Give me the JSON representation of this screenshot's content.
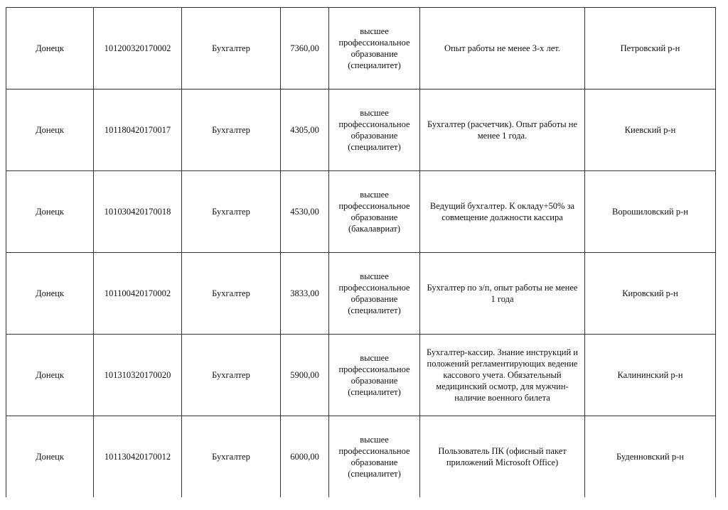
{
  "rows": [
    {
      "city": "Донецк",
      "code": "101200320170002",
      "position": "Бухгалтер",
      "salary": "7360,00",
      "education": "высшее профессиональное образование (специалитет)",
      "requirements": "Опыт работы не менее 3-х лет.",
      "district": "Петровский р-н"
    },
    {
      "city": "Донецк",
      "code": "101180420170017",
      "position": "Бухгалтер",
      "salary": "4305,00",
      "education": "высшее профессиональное образование (специалитет)",
      "requirements": "Бухгалтер (расчетчик). Опыт работы не менее 1 года.",
      "district": "Киевский р-н"
    },
    {
      "city": "Донецк",
      "code": "101030420170018",
      "position": "Бухгалтер",
      "salary": "4530,00",
      "education": "высшее профессиональное образование (бакалавриат)",
      "requirements": "Ведущий бухгалтер. К окладу+50% за совмещение должности кассира",
      "district": "Ворошиловский р-н"
    },
    {
      "city": "Донецк",
      "code": "101100420170002",
      "position": "Бухгалтер",
      "salary": "3833,00",
      "education": "высшее профессиональное образование (специалитет)",
      "requirements": "Бухгалтер по з/п, опыт работы не менее 1 года",
      "district": "Кировский р-н"
    },
    {
      "city": "Донецк",
      "code": "101310320170020",
      "position": "Бухгалтер",
      "salary": "5900,00",
      "education": "высшее профессиональное образование (специалитет)",
      "requirements": "Бухгалтер-кассир. Знание инструкций и положений регламентирующих ведение кассового учета. Обязательный медицинский осмотр, для мужчин-наличие военного билета",
      "district": "Калининский р-н"
    },
    {
      "city": "Донецк",
      "code": "101130420170012",
      "position": "Бухгалтер",
      "salary": "6000,00",
      "education": "высшее профессиональное образование (специалитет)",
      "requirements": "Пользователь ПК (офисный пакет приложений Microsoft Office)",
      "district": "Буденновский р-н"
    }
  ]
}
